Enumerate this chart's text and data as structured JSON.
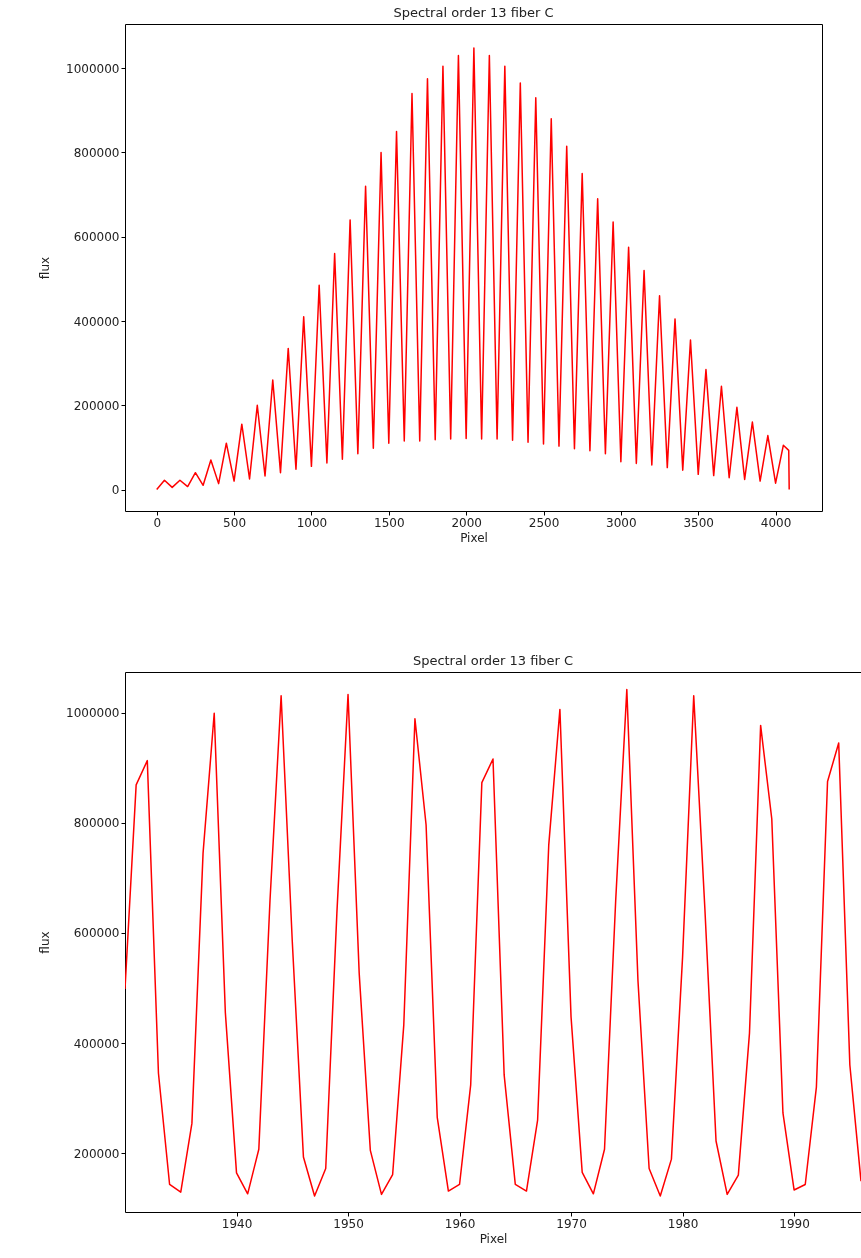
{
  "chart_data": [
    {
      "type": "line",
      "title": "Spectral order 13 fiber C",
      "xlabel": "Pixel",
      "ylabel": "flux",
      "x": [
        0,
        50,
        100,
        150,
        200,
        250,
        300,
        350,
        400,
        450,
        500,
        550,
        600,
        650,
        700,
        750,
        800,
        850,
        900,
        950,
        1000,
        1050,
        1100,
        1150,
        1200,
        1250,
        1300,
        1350,
        1400,
        1450,
        1500,
        1550,
        1600,
        1650,
        1700,
        1750,
        1800,
        1850,
        1900,
        1950,
        2000,
        2050,
        2100,
        2150,
        2200,
        2250,
        2300,
        2350,
        2400,
        2450,
        2500,
        2550,
        2600,
        2650,
        2700,
        2750,
        2800,
        2850,
        2900,
        2950,
        3000,
        3050,
        3100,
        3150,
        3200,
        3250,
        3300,
        3350,
        3400,
        3450,
        3500,
        3550,
        3600,
        3650,
        3700,
        3750,
        3800,
        3850,
        3900,
        3950,
        4000,
        4050,
        4085,
        4088
      ],
      "series": [
        {
          "color": "#ff0000",
          "values": [
            0,
            22000,
            5000,
            22000,
            7000,
            40000,
            10000,
            70000,
            14000,
            110000,
            20000,
            155000,
            25000,
            200000,
            32000,
            260000,
            40000,
            335000,
            48000,
            410000,
            55000,
            485000,
            63000,
            560000,
            72000,
            640000,
            85000,
            720000,
            98000,
            800000,
            110000,
            850000,
            115000,
            940000,
            115000,
            975000,
            118000,
            1005000,
            120000,
            1030000,
            121000,
            1048000,
            120000,
            1030000,
            120000,
            1005000,
            117000,
            965000,
            112000,
            930000,
            108000,
            880000,
            103000,
            815000,
            97000,
            750000,
            92000,
            690000,
            85000,
            635000,
            66000,
            575000,
            62000,
            520000,
            58000,
            460000,
            52000,
            405000,
            46000,
            355000,
            36000,
            285000,
            33000,
            245000,
            28000,
            195000,
            24000,
            160000,
            20000,
            128000,
            15000,
            105000,
            93000,
            0
          ]
        }
      ],
      "xlim": [
        -205,
        4300
      ],
      "xticks": [
        0,
        500,
        1000,
        1500,
        2000,
        2500,
        3000,
        3500,
        4000
      ],
      "ylim": [
        -51000,
        1105000
      ],
      "yticks": [
        0,
        200000,
        400000,
        600000,
        800000,
        1000000
      ],
      "grid": false,
      "marker": "none",
      "line_style": "solid"
    },
    {
      "type": "line",
      "title": "Spectral order 13 fiber C",
      "xlabel": "Pixel",
      "ylabel": "flux",
      "x": [
        1930,
        1931,
        1932,
        1933,
        1934,
        1935,
        1936,
        1937,
        1938,
        1939,
        1940,
        1941,
        1942,
        1943,
        1944,
        1945,
        1946,
        1947,
        1948,
        1949,
        1950,
        1951,
        1952,
        1953,
        1954,
        1955,
        1956,
        1957,
        1958,
        1959,
        1960,
        1961,
        1962,
        1963,
        1964,
        1965,
        1966,
        1967,
        1968,
        1969,
        1970,
        1971,
        1972,
        1973,
        1974,
        1975,
        1976,
        1977,
        1978,
        1979,
        1980,
        1981,
        1982,
        1983,
        1984,
        1985,
        1986,
        1987,
        1988,
        1989,
        1990,
        1991,
        1992,
        1993,
        1994,
        1995,
        1996
      ],
      "series": [
        {
          "color": "#ff0000",
          "values": [
            498000,
            869000,
            913000,
            345000,
            143000,
            129000,
            254000,
            745000,
            999000,
            455000,
            164000,
            126000,
            207000,
            658000,
            1031000,
            585000,
            193000,
            122000,
            172000,
            636000,
            1033000,
            527000,
            205000,
            125000,
            161000,
            433000,
            989000,
            796000,
            265000,
            131000,
            143000,
            324000,
            873000,
            916000,
            342000,
            143000,
            131000,
            260000,
            760000,
            1006000,
            447000,
            165000,
            126000,
            207000,
            658000,
            1042000,
            513000,
            172000,
            122000,
            189000,
            556000,
            1031000,
            644000,
            222000,
            125000,
            160000,
            418000,
            977000,
            807000,
            273000,
            133000,
            143000,
            320000,
            875000,
            945000,
            360000,
            149000
          ]
        }
      ],
      "xlim": [
        1930,
        1996
      ],
      "xticks": [
        1940,
        1950,
        1960,
        1970,
        1980,
        1990
      ],
      "ylim": [
        93000,
        1074000
      ],
      "yticks": [
        200000,
        400000,
        600000,
        800000,
        1000000
      ],
      "grid": false,
      "marker": "none",
      "line_style": "solid"
    }
  ]
}
